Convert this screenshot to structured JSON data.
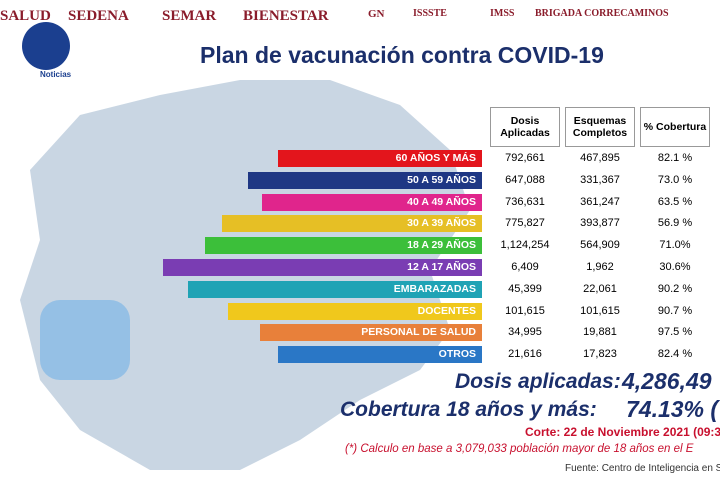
{
  "header": {
    "logos": [
      "SALUD",
      "SEDENA",
      "SEMAR",
      "BIENESTAR",
      "GN",
      "ISSSTE",
      "IMSS",
      "BRIGADA CORRECAMINOS"
    ],
    "brand": "Noticias"
  },
  "title": "Plan de vacunación contra COVID-19",
  "table": {
    "columns": [
      "Dosis Aplicadas",
      "Esquemas Completos",
      "% Cobertura"
    ],
    "rows": [
      [
        "60 AÑOS Y MÁS",
        "792,661",
        "467,895",
        "82.1 %"
      ],
      [
        "50 A 59 AÑOS",
        "647,088",
        "331,367",
        "73.0 %"
      ],
      [
        "40 A 49 AÑOS",
        "736,631",
        "361,247",
        "63.5 %"
      ],
      [
        "30 A 39 AÑOS",
        "775,827",
        "393,877",
        "56.9 %"
      ],
      [
        "18 A 29 AÑOS",
        "1,124,254",
        "564,909",
        "71.0%"
      ],
      [
        "12 A 17 AÑOS",
        "6,409",
        "1,962",
        "30.6%"
      ],
      [
        "EMBARAZADAS",
        "45,399",
        "22,061",
        "90.2 %"
      ],
      [
        "DOCENTES",
        "101,615",
        "101,615",
        "90.7 %"
      ],
      [
        "PERSONAL DE SALUD",
        "34,995",
        "19,881",
        "97.5 %"
      ],
      [
        "OTROS",
        "21,616",
        "17,823",
        "82.4 %"
      ]
    ]
  },
  "summary": {
    "dosis_label": "Dosis aplicadas:",
    "dosis_value": "4,286,49",
    "cobertura_label": "Cobertura 18 años y más:",
    "cobertura_value": "74.13% (",
    "corte": "Corte: 22 de Noviembre 2021 (09:3",
    "nota": "(*) Calculo en base a 3,079,033 población mayor de 18 años en el E",
    "fuente": "Fuente: Centro de Inteligencia en Sa"
  }
}
